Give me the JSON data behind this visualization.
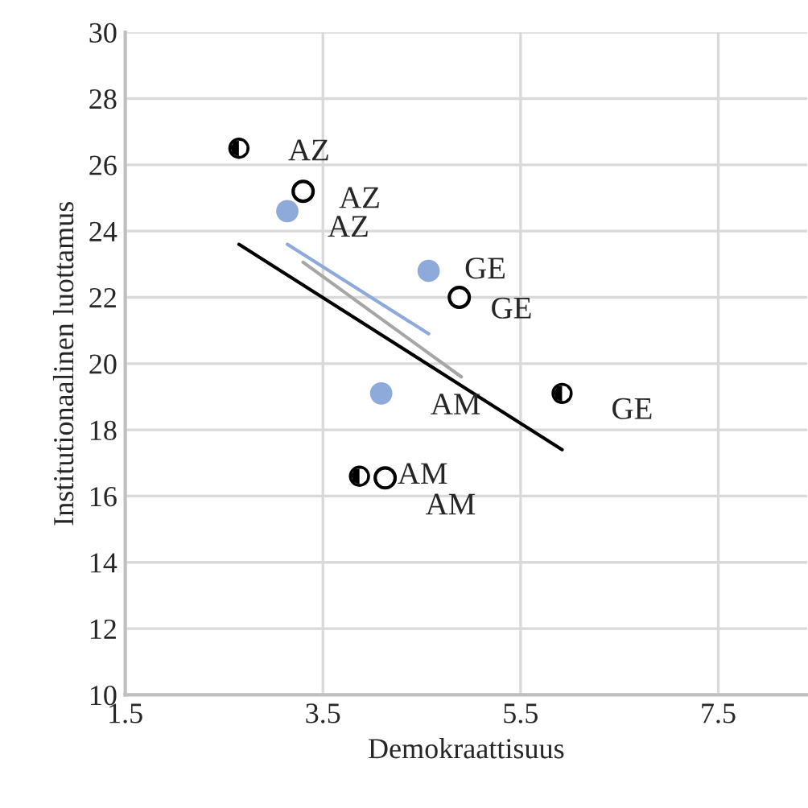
{
  "chart_data": {
    "type": "scatter",
    "xlabel": "Demokraattisuus",
    "ylabel": "Institutionaalinen luottamus",
    "xlim": [
      1.5,
      8.4
    ],
    "xticks": [
      1.5,
      3.5,
      5.5,
      7.5
    ],
    "ylim": [
      10,
      30
    ],
    "yticks": [
      10,
      12,
      14,
      16,
      18,
      20,
      22,
      24,
      26,
      28,
      30
    ],
    "grid": true,
    "series": [
      {
        "marker": "circle",
        "color": "#000000",
        "x": [
          2.65,
          3.87,
          5.92
        ],
        "values": [
          26.5,
          16.6,
          19.1
        ]
      },
      {
        "marker": "circle",
        "color": "#000000",
        "x": [
          3.3,
          4.13,
          4.88
        ],
        "values": [
          25.2,
          16.55,
          22.0
        ]
      },
      {
        "marker": "circle",
        "color": "#8eaadb",
        "x": [
          3.14,
          4.09,
          4.57
        ],
        "values": [
          24.6,
          19.1,
          22.8
        ]
      },
      {
        "type": "line",
        "color": "#000000",
        "x": [
          2.65,
          5.92
        ],
        "values": [
          23.6,
          17.4
        ]
      },
      {
        "type": "line",
        "color": "#8eaadb",
        "x": [
          3.14,
          4.57
        ],
        "values": [
          23.6,
          20.9
        ]
      },
      {
        "type": "line",
        "color": "#a6a6a6",
        "x": [
          3.3,
          4.9
        ],
        "values": [
          23.06,
          19.6
        ]
      }
    ],
    "annotations": [
      {
        "text": "AZ",
        "x": 2.65,
        "y": 26.5
      },
      {
        "text": "AM",
        "x": 3.87,
        "y": 16.6
      },
      {
        "text": "GE",
        "x": 5.92,
        "y": 19.1
      },
      {
        "text": "AZ",
        "x": 3.3,
        "y": 25.2
      },
      {
        "text": "AM",
        "x": 4.13,
        "y": 16.55
      },
      {
        "text": "GE",
        "x": 4.88,
        "y": 22.0
      },
      {
        "text": "AZ",
        "x": 3.14,
        "y": 24.6
      },
      {
        "text": "AM",
        "x": 4.09,
        "y": 19.1
      },
      {
        "text": "GE",
        "x": 4.57,
        "y": 22.8
      }
    ]
  }
}
